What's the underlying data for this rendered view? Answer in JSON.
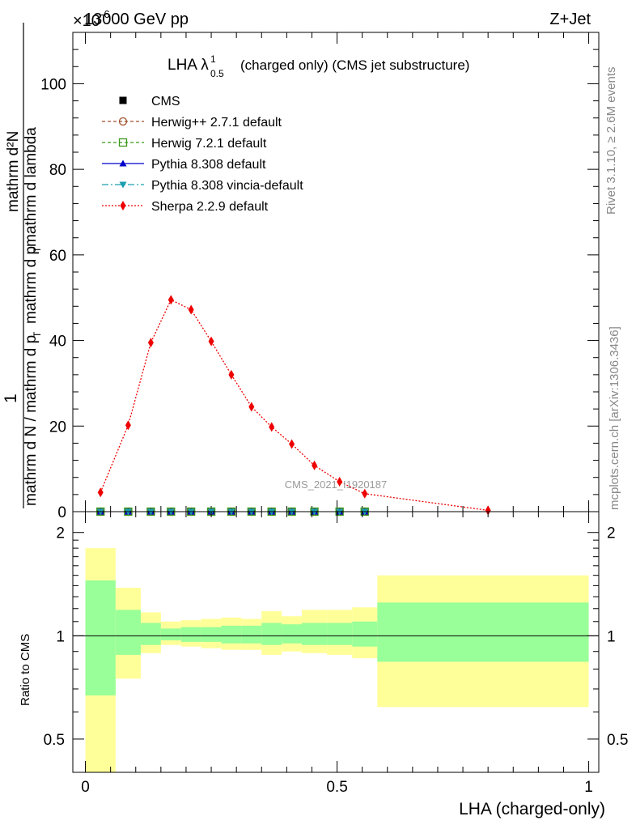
{
  "header": {
    "left": "13000 GeV pp",
    "right": "Z+Jet",
    "exponent_label": "×10",
    "exponent_value": "-6"
  },
  "side_labels": {
    "rivet": "Rivet 3.1.10, ≥ 2.6M events",
    "mcplots": "mcplots.cern.ch [arXiv:1306.3436]"
  },
  "watermark": "CMS_2021_I1920187",
  "title": {
    "main": "LHA λ",
    "superscript": "1",
    "subscript": "0.5",
    "rest": "(charged only) (CMS jet substructure)"
  },
  "legend": [
    {
      "key": "cms",
      "label": "CMS",
      "color": "#000000",
      "marker": "square-filled",
      "dash": "none"
    },
    {
      "key": "herwigpp",
      "label": "Herwig++ 2.7.1 default",
      "color": "#a0522d",
      "marker": "circle-open",
      "dash": "4,3"
    },
    {
      "key": "herwig7",
      "label": "Herwig 7.2.1 default",
      "color": "#3a9a1a",
      "marker": "square-open",
      "dash": "4,3"
    },
    {
      "key": "pythia",
      "label": "Pythia 8.308 default",
      "color": "#0000cc",
      "marker": "triangle-up",
      "dash": "none"
    },
    {
      "key": "vincia",
      "label": "Pythia 8.308 vincia-default",
      "color": "#1b9fb0",
      "marker": "triangle-down",
      "dash": "8,3,2,3"
    },
    {
      "key": "sherpa",
      "label": "Sherpa 2.2.9 default",
      "color": "#ee0000",
      "marker": "diamond",
      "dash": "2,2"
    }
  ],
  "colors": {
    "band_outer": "#ffff99",
    "band_inner": "#99ff99"
  },
  "chart_data": [
    {
      "type": "line",
      "title": "LHA λ^1_0.5 (charged only) (CMS jet substructure)",
      "xlabel": "LHA (charged-only)",
      "ylabel": "1 / mathrm d N / mathrm d p_T  mathrm d^2N / mathrm d p_T mathrm d lambda",
      "ylabel_numerator": "mathrm d²N",
      "ylabel_denominator": "mathrm d N / mathrm d p",
      "xlim": [
        -0.025,
        1.02
      ],
      "ylim": [
        0,
        112
      ],
      "yticks": [
        0,
        20,
        40,
        60,
        80,
        100
      ],
      "x_bin_edges": [
        0.0,
        0.06,
        0.11,
        0.15,
        0.19,
        0.23,
        0.27,
        0.31,
        0.35,
        0.39,
        0.43,
        0.48,
        0.53,
        0.58,
        1.0
      ],
      "series": [
        {
          "name": "Sherpa 2.2.9 default",
          "x": [
            0.03,
            0.085,
            0.13,
            0.17,
            0.21,
            0.25,
            0.29,
            0.33,
            0.37,
            0.41,
            0.455,
            0.505,
            0.555,
            0.8
          ],
          "values": [
            4.5,
            20.2,
            39.5,
            49.5,
            47.2,
            39.8,
            32.0,
            24.5,
            19.8,
            15.8,
            10.8,
            7.0,
            4.2,
            0.3
          ]
        },
        {
          "name": "CMS",
          "x": [
            0.03,
            0.085,
            0.13,
            0.17,
            0.21,
            0.25,
            0.29,
            0.33,
            0.37,
            0.41,
            0.455,
            0.505,
            0.555
          ],
          "values": [
            0,
            0,
            0,
            0,
            0,
            0,
            0,
            0,
            0,
            0,
            0,
            0,
            0
          ]
        },
        {
          "name": "Herwig++ 2.7.1 default",
          "x": [
            0.03,
            0.085,
            0.13,
            0.17,
            0.21,
            0.25,
            0.29,
            0.33,
            0.37,
            0.41,
            0.455,
            0.505,
            0.555
          ],
          "values": [
            0,
            0,
            0,
            0,
            0,
            0,
            0,
            0,
            0,
            0,
            0,
            0,
            0
          ]
        },
        {
          "name": "Herwig 7.2.1 default",
          "x": [
            0.03,
            0.085,
            0.13,
            0.17,
            0.21,
            0.25,
            0.29,
            0.33,
            0.37,
            0.41,
            0.455,
            0.505,
            0.555
          ],
          "values": [
            0,
            0,
            0,
            0,
            0,
            0,
            0,
            0,
            0,
            0,
            0,
            0,
            0
          ]
        },
        {
          "name": "Pythia 8.308 default",
          "x": [
            0.03,
            0.085,
            0.13,
            0.17,
            0.21,
            0.25,
            0.29,
            0.33,
            0.37,
            0.41,
            0.455,
            0.505,
            0.555
          ],
          "values": [
            0,
            0,
            0,
            0,
            0,
            0,
            0,
            0,
            0,
            0,
            0,
            0,
            0
          ]
        },
        {
          "name": "Pythia 8.308 vincia-default",
          "x": [
            0.03,
            0.085,
            0.13,
            0.17,
            0.21,
            0.25,
            0.29,
            0.33,
            0.37,
            0.41,
            0.455,
            0.505,
            0.555
          ],
          "values": [
            0,
            0,
            0,
            0,
            0,
            0,
            0,
            0,
            0,
            0,
            0,
            0,
            0
          ]
        }
      ]
    },
    {
      "type": "area",
      "title": "Ratio to CMS",
      "xlabel": "LHA (charged-only)",
      "ylabel": "Ratio to CMS",
      "xlim": [
        -0.025,
        1.02
      ],
      "ylim": [
        0.4,
        2.3
      ],
      "yscale": "log",
      "yticks": [
        0.5,
        1,
        2
      ],
      "xticks": [
        0,
        0.5,
        1
      ],
      "xtick_labels": [
        "0",
        "0.5",
        "1"
      ],
      "reference_line": 1,
      "bands": {
        "x_edges": [
          0.0,
          0.06,
          0.11,
          0.15,
          0.19,
          0.23,
          0.27,
          0.31,
          0.35,
          0.39,
          0.43,
          0.48,
          0.53,
          0.58,
          1.0
        ],
        "outer_low": [
          0.25,
          0.75,
          0.89,
          0.94,
          0.93,
          0.92,
          0.91,
          0.91,
          0.88,
          0.9,
          0.89,
          0.88,
          0.86,
          0.62
        ],
        "outer_high": [
          1.8,
          1.38,
          1.17,
          1.1,
          1.11,
          1.12,
          1.13,
          1.12,
          1.18,
          1.14,
          1.19,
          1.19,
          1.21,
          1.5
        ],
        "inner_low": [
          0.67,
          0.88,
          0.94,
          0.97,
          0.96,
          0.96,
          0.95,
          0.95,
          0.94,
          0.95,
          0.94,
          0.94,
          0.93,
          0.84
        ],
        "inner_high": [
          1.45,
          1.19,
          1.09,
          1.05,
          1.06,
          1.06,
          1.07,
          1.07,
          1.09,
          1.08,
          1.09,
          1.09,
          1.1,
          1.25
        ]
      }
    }
  ]
}
